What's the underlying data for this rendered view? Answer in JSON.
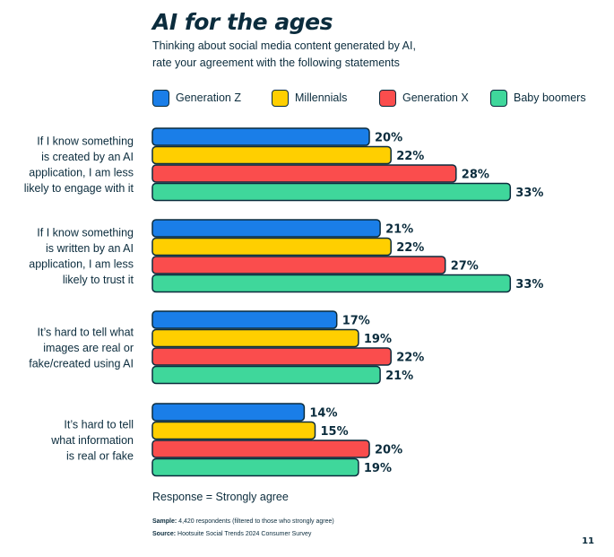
{
  "title": "AI for the ages",
  "subtitle_line1": "Thinking about social media content generated by AI,",
  "subtitle_line2": "rate your agreement with the following statements",
  "response_note": "Response = Strongly agree",
  "sample_label": "Sample:",
  "sample_text": " 4,420 respondents (filtered to those who strongly agree)",
  "source_label": "Source:",
  "source_text": " Hootsuite Social Trends 2024 Consumer Survey",
  "page_number": "11",
  "colors": {
    "text": "#0b2c3d",
    "generation_z": "#1a7ee8",
    "millennials": "#ffcf00",
    "generation_x": "#fa4d4d",
    "baby_boomers": "#3fd79b"
  },
  "legend": [
    {
      "label": "Generation Z",
      "color": "#1a7ee8"
    },
    {
      "label": "Millennials",
      "color": "#ffcf00"
    },
    {
      "label": "Generation X",
      "color": "#fa4d4d"
    },
    {
      "label": "Baby boomers",
      "color": "#3fd79b"
    }
  ],
  "chart_data": {
    "type": "bar",
    "orientation": "horizontal",
    "unit": "%",
    "categories": [
      [
        "If I know something",
        "is created by an AI",
        "application, I am less",
        "likely to engage with it"
      ],
      [
        "If I know something",
        "is written by an AI",
        "application, I am less",
        "likely to trust it"
      ],
      [
        "It’s hard to tell what",
        "images are real or",
        "fake/created using AI"
      ],
      [
        "It’s hard to tell",
        "what information",
        "is real or fake"
      ]
    ],
    "series": [
      {
        "name": "Generation Z",
        "color": "#1a7ee8",
        "values": [
          20,
          21,
          17,
          14
        ]
      },
      {
        "name": "Millennials",
        "color": "#ffcf00",
        "values": [
          22,
          22,
          19,
          15
        ]
      },
      {
        "name": "Generation X",
        "color": "#fa4d4d",
        "values": [
          28,
          27,
          22,
          20
        ]
      },
      {
        "name": "Baby boomers",
        "color": "#3fd79b",
        "values": [
          33,
          33,
          21,
          19
        ]
      }
    ],
    "data_labels": [
      [
        "20%",
        "21%",
        "17%",
        "14%"
      ],
      [
        "22%",
        "22%",
        "19%",
        "15%"
      ],
      [
        "28%",
        "27%",
        "22%",
        "20%"
      ],
      [
        "33%",
        "33%",
        "21%",
        "19%"
      ]
    ],
    "grid": false,
    "legend_position": "top"
  }
}
